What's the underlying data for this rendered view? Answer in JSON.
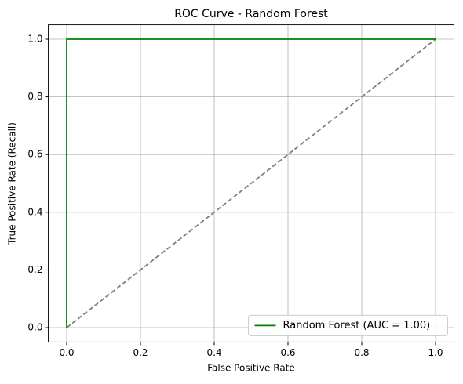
{
  "chart_data": {
    "type": "line",
    "title": "ROC Curve - Random Forest",
    "x_label": "False Positive Rate",
    "y_label": "True Positive Rate (Recall)",
    "series": [
      {
        "name": "Random Forest (AUC = 1.00)",
        "color": "#008000",
        "linestyle": "solid",
        "x": [
          0,
          0,
          1
        ],
        "values": [
          0,
          1,
          1
        ]
      },
      {
        "color": "#808080",
        "linestyle": "dashed",
        "x": [
          0,
          1
        ],
        "values": [
          0,
          1
        ]
      }
    ],
    "xlim": [
      -0.05,
      1.05
    ],
    "ylim": [
      -0.05,
      1.05
    ],
    "xticks": [
      {
        "value": 0,
        "label": "0.0"
      },
      0.2,
      0.4,
      0.6,
      0.8,
      {
        "value": 1,
        "label": "1.0"
      }
    ],
    "yticks": [
      {
        "value": 0,
        "label": "0.0"
      },
      0.2,
      0.4,
      0.6,
      0.8,
      {
        "value": 1,
        "label": "1.0"
      }
    ],
    "grid": true,
    "legend": "lower right"
  }
}
